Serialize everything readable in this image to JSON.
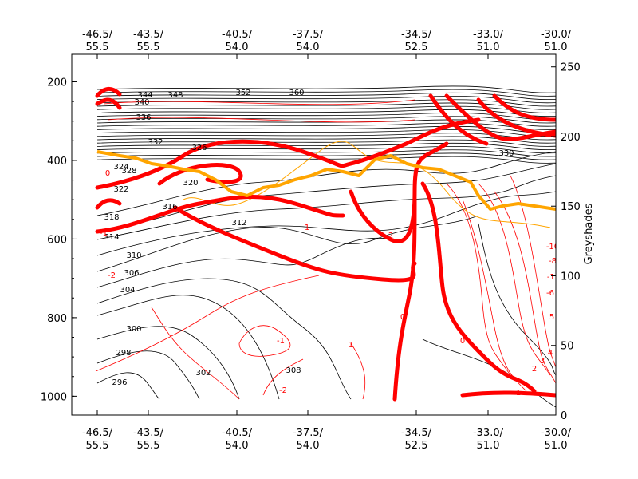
{
  "chart_data": {
    "type": "contour",
    "title": "",
    "xlabel": "",
    "ylabel": "",
    "right_axis_label": "Greyshades",
    "x_ticks": [
      {
        "lon": "-46.5/",
        "lat": "55.5"
      },
      {
        "lon": "-43.5/",
        "lat": "55.5"
      },
      {
        "lon": "-40.5/",
        "lat": "54.0"
      },
      {
        "lon": "-37.5/",
        "lat": "54.0"
      },
      {
        "lon": "-34.5/",
        "lat": "52.5"
      },
      {
        "lon": "-33.0/",
        "lat": "51.0"
      },
      {
        "lon": "-30.0/",
        "lat": "51.0"
      }
    ],
    "y_left_ticks": [
      200,
      400,
      600,
      800,
      1000
    ],
    "y_left_range": [
      1048,
      130
    ],
    "y_right_ticks": [
      0,
      50,
      100,
      150,
      200,
      250
    ],
    "y_right_range": [
      0,
      255
    ],
    "series": [
      {
        "name": "",
        "style": "theta",
        "contour_labels": [
          "296",
          "298",
          "300",
          "302",
          "304",
          "306",
          "308",
          "310",
          "312",
          "314",
          "316",
          "318",
          "320",
          "322",
          "324",
          "326",
          "328",
          "330",
          "332",
          "336",
          "340",
          "344",
          "348",
          "352",
          "360"
        ]
      },
      {
        "name": "",
        "style": "thin-red",
        "contour_labels": [
          "-1",
          "-2",
          "1",
          "2",
          "3",
          "4",
          "5",
          "-6",
          "-8",
          "-10",
          "-12"
        ]
      },
      {
        "name": "",
        "style": "thick-red",
        "contour_labels": [
          "0",
          "1",
          "-1",
          "2",
          "-2",
          "0",
          "0",
          "1"
        ]
      },
      {
        "name": "",
        "style": "thick-orange"
      },
      {
        "name": "",
        "style": "thin-orange"
      }
    ],
    "grid": false,
    "legend": "none"
  },
  "colors": {
    "axis": "#000000",
    "theta_lines": "#000000",
    "thin_red": "#ff0000",
    "thick_red": "#ff0000",
    "orange": "#ffa500"
  }
}
